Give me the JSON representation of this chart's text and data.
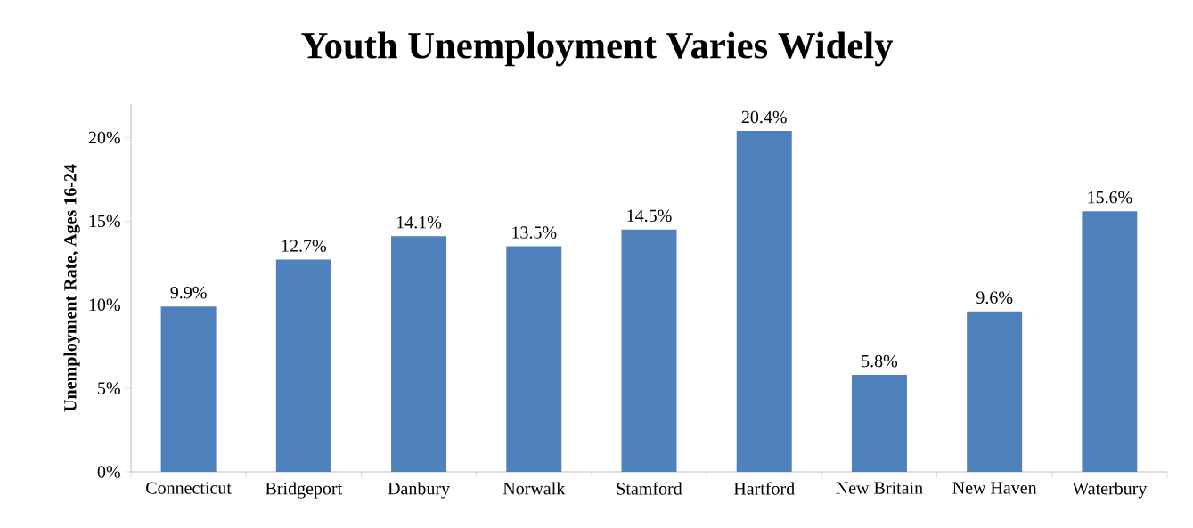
{
  "chart_data": {
    "type": "bar",
    "title": "Youth Unemployment Varies Widely",
    "ylabel": "Unemployment Rate, Ages 16-24",
    "categories": [
      "Connecticut",
      "Bridgeport",
      "Danbury",
      "Norwalk",
      "Stamford",
      "Hartford",
      "New Britain",
      "New Haven",
      "Waterbury"
    ],
    "values": [
      9.9,
      12.7,
      14.1,
      13.5,
      14.5,
      20.4,
      5.8,
      9.6,
      15.6
    ],
    "value_labels": [
      "9.9%",
      "12.7%",
      "14.1%",
      "13.5%",
      "14.5%",
      "20.4%",
      "5.8%",
      "9.6%",
      "15.6%"
    ],
    "color": "#4f81bd",
    "ylim": [
      0,
      22
    ],
    "yticks": [
      {
        "value": 0,
        "label": "0%"
      },
      {
        "value": 5,
        "label": "5%"
      },
      {
        "value": 10,
        "label": "10%"
      },
      {
        "value": 15,
        "label": "15%"
      },
      {
        "value": 20,
        "label": "20%"
      }
    ],
    "grid": false
  }
}
